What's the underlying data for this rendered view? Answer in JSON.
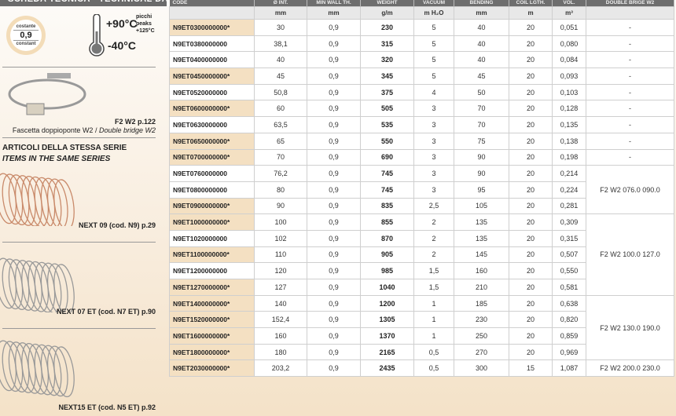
{
  "left": {
    "header": "SCHEDA TECNICA - TECHNICAL DATA",
    "badge": {
      "top": "costante",
      "value": "0,9",
      "bottom": "constant"
    },
    "temp": {
      "max": "+90°C",
      "min": "-40°C",
      "peaks": [
        "picchi",
        "peaks",
        "+125°C"
      ]
    },
    "clamp": {
      "ref": "F2 W2 p.122",
      "desc_it": "Fascetta doppioponte W2 / ",
      "desc_en": "Double bridge W2"
    },
    "series_title_it": "ARTICOLI DELLA STESSA SERIE",
    "series_title_en": "ITEMS IN THE SAME SERIES",
    "series": [
      {
        "label": "NEXT 09 (cod. N9) p.29",
        "color": "#c98a6a"
      },
      {
        "label": "NEXT 07 ET (cod. N7 ET) p.90",
        "color": "#999"
      },
      {
        "label": "NEXT15 ET (cod. N5 ET) p.92",
        "color": "#999"
      }
    ]
  },
  "table": {
    "headers": [
      "CODE",
      "Ø INT.",
      "MIN WALL TH.",
      "WEIGHT",
      "VACUUM",
      "BENDING",
      "COIL LGTH.",
      "VOL.",
      "DOUBLE BRIGE W2"
    ],
    "units": [
      "",
      "mm",
      "mm",
      "g/m",
      "m H₂O",
      "mm",
      "m",
      "m³",
      ""
    ],
    "rows": [
      [
        "N9ET0300000000*",
        "30",
        "0,9",
        "230",
        "5",
        "40",
        "20",
        "0,051"
      ],
      [
        "N9ET0380000000",
        "38,1",
        "0,9",
        "315",
        "5",
        "40",
        "20",
        "0,080"
      ],
      [
        "N9ET0400000000",
        "40",
        "0,9",
        "320",
        "5",
        "40",
        "20",
        "0,084"
      ],
      [
        "N9ET0450000000*",
        "45",
        "0,9",
        "345",
        "5",
        "45",
        "20",
        "0,093"
      ],
      [
        "N9ET0520000000",
        "50,8",
        "0,9",
        "375",
        "4",
        "50",
        "20",
        "0,103"
      ],
      [
        "N9ET0600000000*",
        "60",
        "0,9",
        "505",
        "3",
        "70",
        "20",
        "0,128"
      ],
      [
        "N9ET0630000000",
        "63,5",
        "0,9",
        "535",
        "3",
        "70",
        "20",
        "0,135"
      ],
      [
        "N9ET0650000000*",
        "65",
        "0,9",
        "550",
        "3",
        "75",
        "20",
        "0,138"
      ],
      [
        "N9ET0700000000*",
        "70",
        "0,9",
        "690",
        "3",
        "90",
        "20",
        "0,198"
      ],
      [
        "N9ET0760000000",
        "76,2",
        "0,9",
        "745",
        "3",
        "90",
        "20",
        "0,214"
      ],
      [
        "N9ET0800000000",
        "80",
        "0,9",
        "745",
        "3",
        "95",
        "20",
        "0,224"
      ],
      [
        "N9ET0900000000*",
        "90",
        "0,9",
        "835",
        "2,5",
        "105",
        "20",
        "0,281"
      ],
      [
        "N9ET1000000000*",
        "100",
        "0,9",
        "855",
        "2",
        "135",
        "20",
        "0,309"
      ],
      [
        "N9ET1020000000",
        "102",
        "0,9",
        "870",
        "2",
        "135",
        "20",
        "0,315"
      ],
      [
        "N9ET1100000000*",
        "110",
        "0,9",
        "905",
        "2",
        "145",
        "20",
        "0,507"
      ],
      [
        "N9ET1200000000",
        "120",
        "0,9",
        "985",
        "1,5",
        "160",
        "20",
        "0,550"
      ],
      [
        "N9ET1270000000*",
        "127",
        "0,9",
        "1040",
        "1,5",
        "210",
        "20",
        "0,581"
      ],
      [
        "N9ET1400000000*",
        "140",
        "0,9",
        "1200",
        "1",
        "185",
        "20",
        "0,638"
      ],
      [
        "N9ET1520000000*",
        "152,4",
        "0,9",
        "1305",
        "1",
        "230",
        "20",
        "0,820"
      ],
      [
        "N9ET1600000000*",
        "160",
        "0,9",
        "1370",
        "1",
        "250",
        "20",
        "0,859"
      ],
      [
        "N9ET1800000000*",
        "180",
        "0,9",
        "2165",
        "0,5",
        "270",
        "20",
        "0,969"
      ],
      [
        "N9ET2030000000*",
        "203,2",
        "0,9",
        "2435",
        "0,5",
        "300",
        "15",
        "1,087"
      ]
    ],
    "brige_groups": [
      {
        "start": 0,
        "span": 1,
        "value": "-"
      },
      {
        "start": 1,
        "span": 1,
        "value": "-"
      },
      {
        "start": 2,
        "span": 1,
        "value": "-"
      },
      {
        "start": 3,
        "span": 1,
        "value": "-"
      },
      {
        "start": 4,
        "span": 1,
        "value": "-"
      },
      {
        "start": 5,
        "span": 1,
        "value": "-"
      },
      {
        "start": 6,
        "span": 1,
        "value": "-"
      },
      {
        "start": 7,
        "span": 1,
        "value": "-"
      },
      {
        "start": 8,
        "span": 1,
        "value": "-"
      },
      {
        "start": 9,
        "span": 3,
        "value": "F2 W2 076.0 090.0"
      },
      {
        "start": 12,
        "span": 5,
        "value": "F2 W2 100.0 127.0"
      },
      {
        "start": 17,
        "span": 4,
        "value": "F2 W2 130.0 190.0"
      },
      {
        "start": 21,
        "span": 1,
        "value": "F2 W2 200.0 230.0"
      }
    ]
  }
}
